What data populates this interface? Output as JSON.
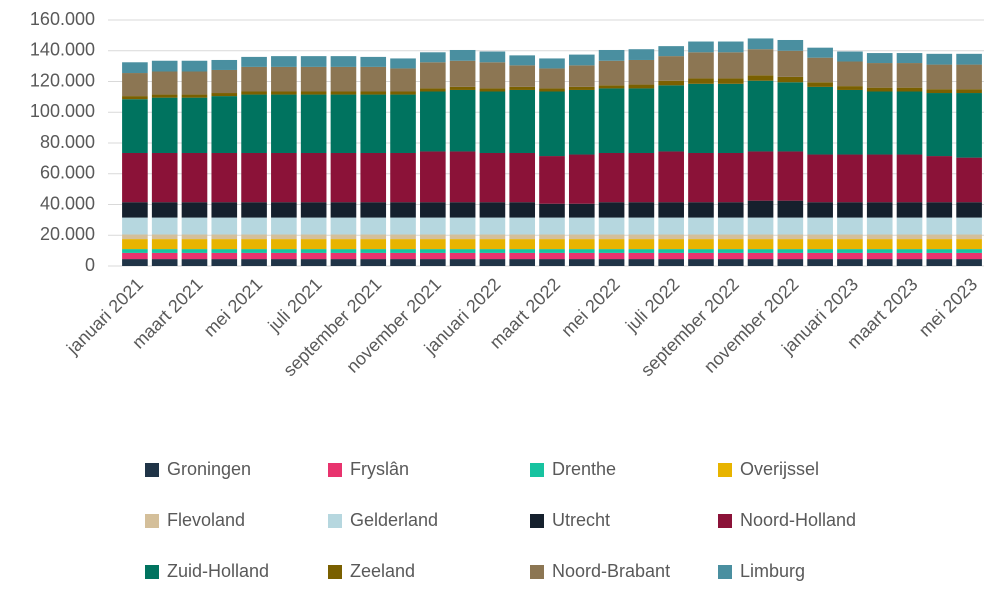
{
  "chart_data": {
    "type": "stacked_bar",
    "categories": [
      "januari 2021",
      null,
      "maart 2021",
      null,
      "mei 2021",
      null,
      "juli 2021",
      null,
      "september 2021",
      null,
      "november 2021",
      null,
      "januari 2022",
      null,
      "maart 2022",
      null,
      "mei 2022",
      null,
      "juli 2022",
      null,
      "september 2022",
      null,
      "november 2022",
      null,
      "januari 2023",
      null,
      "maart 2023",
      null,
      "mei 2023"
    ],
    "ylim": [
      0,
      160000
    ],
    "yticks": [
      0,
      {
        "value": 20000,
        "label": "20.000"
      },
      {
        "value": 40000,
        "label": "40.000"
      },
      {
        "value": 60000,
        "label": "60.000"
      },
      {
        "value": 80000,
        "label": "80.000"
      },
      {
        "value": 100000,
        "label": "100.000"
      },
      {
        "value": 120000,
        "label": "120.000"
      },
      {
        "value": 140000,
        "label": "140.000"
      },
      {
        "value": 160000,
        "label": "160.000"
      }
    ],
    "grid": true,
    "series": [
      {
        "name": "Groningen",
        "color": "#203447",
        "values": [
          4500,
          4500,
          4500,
          4500,
          4500,
          4500,
          4500,
          4500,
          4500,
          4500,
          4500,
          4500,
          4500,
          4500,
          4500,
          4500,
          4500,
          4500,
          4500,
          4500,
          4500,
          4500,
          4500,
          4500,
          4500,
          4500,
          4500,
          4500,
          4500
        ]
      },
      {
        "name": "Fryslân",
        "color": "#e8336e",
        "values": [
          4000,
          4000,
          4000,
          4000,
          4000,
          4000,
          4000,
          4000,
          4000,
          4000,
          4000,
          4000,
          4000,
          4000,
          4000,
          4000,
          4000,
          4000,
          4000,
          4000,
          4000,
          4000,
          4000,
          4000,
          4000,
          4000,
          4000,
          4000,
          4000
        ]
      },
      {
        "name": "Drenthe",
        "color": "#17c3a0",
        "values": [
          2500,
          2500,
          2500,
          2500,
          2500,
          2500,
          2500,
          2500,
          2500,
          2500,
          2500,
          2500,
          2500,
          2500,
          2500,
          2500,
          2500,
          2500,
          2500,
          2500,
          2500,
          2500,
          2500,
          2500,
          2500,
          2500,
          2500,
          2500,
          2500
        ]
      },
      {
        "name": "Overijssel",
        "color": "#e8b400",
        "values": [
          6500,
          6500,
          6500,
          6500,
          6500,
          6500,
          6500,
          6500,
          6500,
          6500,
          6500,
          6500,
          6500,
          6500,
          6500,
          6500,
          6500,
          6500,
          6500,
          6500,
          6500,
          6500,
          6500,
          6500,
          6500,
          6500,
          6500,
          6500,
          6500
        ]
      },
      {
        "name": "Flevoland",
        "color": "#d4bf9a",
        "values": [
          3000,
          3000,
          3000,
          3000,
          3000,
          3000,
          3000,
          3000,
          3000,
          3000,
          3000,
          3000,
          3000,
          3000,
          3000,
          3000,
          3000,
          3000,
          3000,
          3000,
          3000,
          3000,
          3000,
          3000,
          3000,
          3000,
          3000,
          3000,
          3000
        ]
      },
      {
        "name": "Gelderland",
        "color": "#b6d7df",
        "values": [
          11000,
          11000,
          11000,
          11000,
          11000,
          11000,
          11000,
          11000,
          11000,
          11000,
          11000,
          11000,
          11000,
          11000,
          11000,
          11000,
          11000,
          11000,
          11000,
          11000,
          11000,
          11000,
          11000,
          11000,
          11000,
          11000,
          11000,
          11000,
          11000
        ]
      },
      {
        "name": "Utrecht",
        "color": "#15202d",
        "values": [
          10000,
          10000,
          10000,
          10000,
          10000,
          10000,
          10000,
          10000,
          10000,
          10000,
          10000,
          10000,
          10000,
          10000,
          9000,
          9000,
          10000,
          10000,
          10000,
          10000,
          10000,
          11000,
          11000,
          10000,
          10000,
          10000,
          10000,
          10000,
          10000
        ]
      },
      {
        "name": "Noord-Holland",
        "color": "#8b1238",
        "values": [
          32000,
          32000,
          32000,
          32000,
          32000,
          32000,
          32000,
          32000,
          32000,
          32000,
          33000,
          33000,
          32000,
          32000,
          31000,
          32000,
          32000,
          32000,
          33000,
          32000,
          32000,
          32000,
          32000,
          31000,
          31000,
          31000,
          31000,
          30000,
          29000
        ]
      },
      {
        "name": "Zuid-Holland",
        "color": "#00735f",
        "values": [
          35000,
          36000,
          36000,
          37000,
          38000,
          38000,
          38000,
          38000,
          38000,
          38000,
          39000,
          40000,
          40000,
          41000,
          42000,
          42000,
          42000,
          42000,
          43000,
          45000,
          45000,
          46000,
          45000,
          44000,
          42000,
          41000,
          41000,
          41000,
          42000
        ]
      },
      {
        "name": "Zeeland",
        "color": "#7a6000",
        "values": [
          2000,
          2000,
          2000,
          2000,
          2000,
          2000,
          2000,
          2000,
          2000,
          2000,
          2000,
          2000,
          2000,
          2000,
          2000,
          2000,
          2000,
          2500,
          3000,
          3500,
          3500,
          3500,
          3500,
          3000,
          2500,
          2500,
          2500,
          2500,
          2500
        ]
      },
      {
        "name": "Noord-Brabant",
        "color": "#8c7653",
        "values": [
          15000,
          15000,
          15000,
          15000,
          16000,
          16000,
          16000,
          16000,
          16000,
          15000,
          17000,
          17000,
          17000,
          14000,
          13000,
          14000,
          16000,
          16000,
          16000,
          17000,
          17000,
          17000,
          17000,
          16000,
          16000,
          16000,
          16000,
          16000,
          16000
        ]
      },
      {
        "name": "Limburg",
        "color": "#4a8fa0",
        "values": [
          7000,
          7000,
          7000,
          6500,
          6500,
          7000,
          7000,
          7000,
          6500,
          6500,
          6500,
          7000,
          7000,
          6500,
          6500,
          7000,
          7000,
          7000,
          6500,
          7000,
          7000,
          7000,
          7000,
          6500,
          6500,
          6500,
          6500,
          7000,
          7000
        ]
      }
    ]
  }
}
